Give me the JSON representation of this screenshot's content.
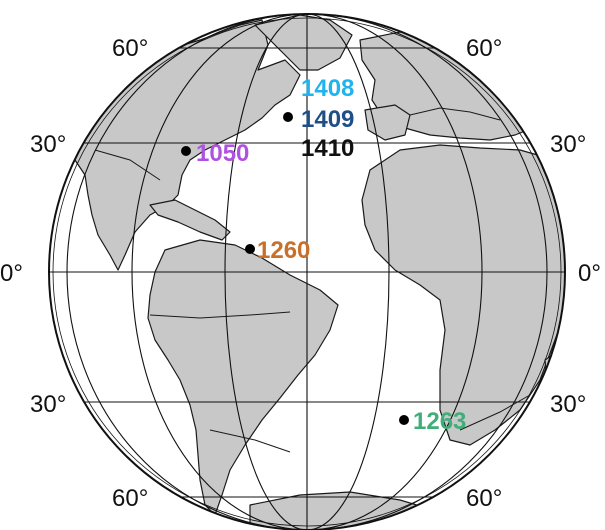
{
  "map": {
    "lat_labels": {
      "n60_left": "60°",
      "n60_right": "60°",
      "n30_left": "30°",
      "n30_right": "30°",
      "eq_left": "0°",
      "eq_right": "0°",
      "s30_left": "30°",
      "s30_right": "30°",
      "s60_left": "60°",
      "s60_right": "60°"
    },
    "sites": [
      {
        "id": "1408",
        "label": "1408",
        "color": "#1fb4ee"
      },
      {
        "id": "1409",
        "label": "1409",
        "color": "#1f4f86"
      },
      {
        "id": "1410",
        "label": "1410",
        "color": "#111111"
      },
      {
        "id": "1050",
        "label": "1050",
        "color": "#b052e0"
      },
      {
        "id": "1260",
        "label": "1260",
        "color": "#c8702a"
      },
      {
        "id": "1263",
        "label": "1263",
        "color": "#3fae78"
      }
    ],
    "colors": {
      "land": "#c8c8c8",
      "ocean": "#ffffff",
      "outline": "#1a1a1a"
    }
  }
}
